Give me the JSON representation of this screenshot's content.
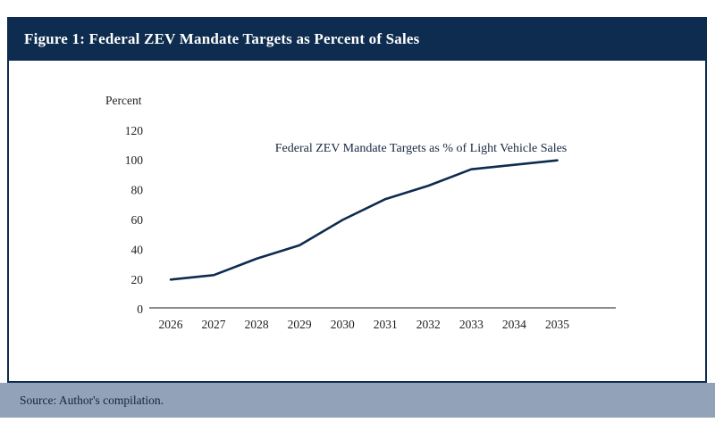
{
  "figure": {
    "title": "Figure 1: Federal ZEV Mandate Targets as Percent of Sales",
    "source": "Source: Author's compilation."
  },
  "chart_data": {
    "type": "line",
    "annotation": "Federal ZEV Mandate Targets as % of Light Vehicle Sales",
    "ylabel": "Percent",
    "categories": [
      "2026",
      "2027",
      "2028",
      "2029",
      "2030",
      "2031",
      "2032",
      "2033",
      "2034",
      "2035"
    ],
    "series": [
      {
        "name": "Federal ZEV Mandate Targets as % of Light Vehicle Sales",
        "values": [
          20,
          23,
          34,
          43,
          60,
          74,
          83,
          94,
          97,
          100
        ]
      }
    ],
    "yticks": [
      0,
      20,
      40,
      60,
      80,
      100,
      120
    ],
    "ylim": [
      0,
      120
    ],
    "grid": false,
    "legend_position": "none",
    "line_color": "#0d2c4f",
    "axis_line_color": "#8a8a8a",
    "tick_text_color": "#1e1e1e",
    "annotation_color": "#17293f"
  },
  "colors": {
    "banner_navy": "#0d2c4f",
    "footer_blue_gray": "#92a2b8",
    "panel_background": "#ffffff"
  }
}
